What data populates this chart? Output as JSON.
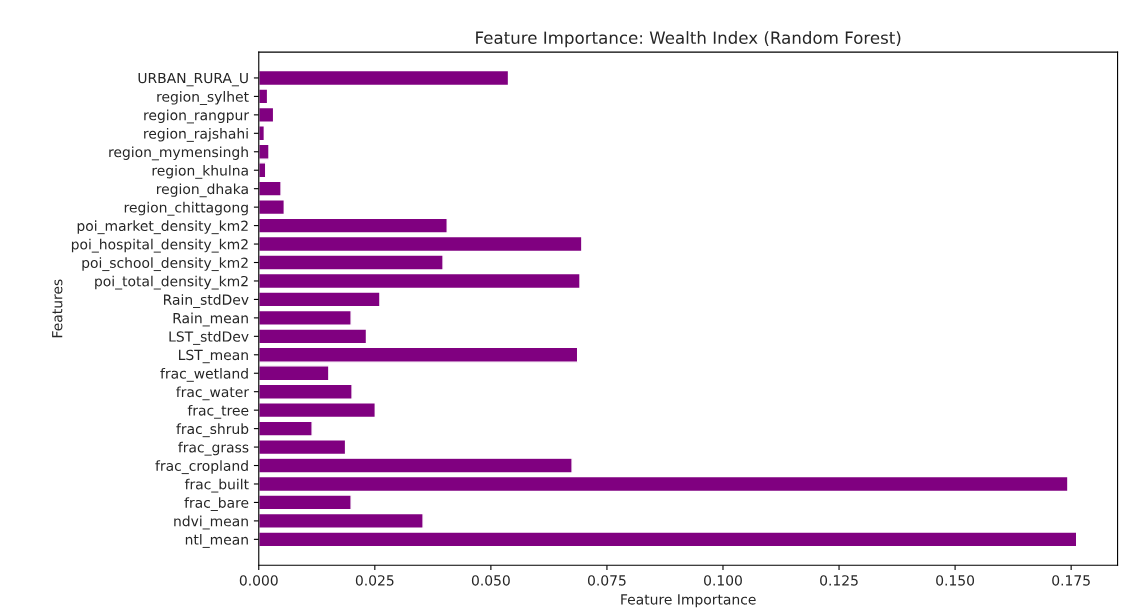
{
  "chart_data": {
    "type": "bar",
    "orientation": "horizontal",
    "title": "Feature Importance: Wealth Index (Random Forest)",
    "xlabel": "Feature Importance",
    "ylabel": "Features",
    "categories": [
      "URBAN_RURA_U",
      "region_sylhet",
      "region_rangpur",
      "region_rajshahi",
      "region_mymensingh",
      "region_khulna",
      "region_dhaka",
      "region_chittagong",
      "poi_market_density_km2",
      "poi_hospital_density_km2",
      "poi_school_density_km2",
      "poi_total_density_km2",
      "Rain_stdDev",
      "Rain_mean",
      "LST_stdDev",
      "LST_mean",
      "frac_wetland",
      "frac_water",
      "frac_tree",
      "frac_shrub",
      "frac_grass",
      "frac_cropland",
      "frac_built",
      "frac_bare",
      "ndvi_mean",
      "ntl_mean"
    ],
    "values": [
      0.0538,
      0.0019,
      0.0032,
      0.0012,
      0.0022,
      0.0015,
      0.0048,
      0.0055,
      0.0406,
      0.0696,
      0.0397,
      0.0692,
      0.0261,
      0.0199,
      0.0232,
      0.0687,
      0.0151,
      0.0201,
      0.0251,
      0.0115,
      0.0187,
      0.0675,
      0.1743,
      0.0199,
      0.0354,
      0.1762
    ],
    "color": "#800080",
    "xlim": [
      0,
      0.185
    ],
    "xticks": [
      {
        "value": 0,
        "label": "0.000"
      },
      {
        "value": 0.025,
        "label": "0.025"
      },
      {
        "value": 0.05,
        "label": "0.050"
      },
      {
        "value": 0.075,
        "label": "0.075"
      },
      {
        "value": 0.1,
        "label": "0.100"
      },
      {
        "value": 0.125,
        "label": "0.125"
      },
      {
        "value": 0.15,
        "label": "0.150"
      },
      {
        "value": 0.175,
        "label": "0.175"
      }
    ],
    "grid": false
  }
}
